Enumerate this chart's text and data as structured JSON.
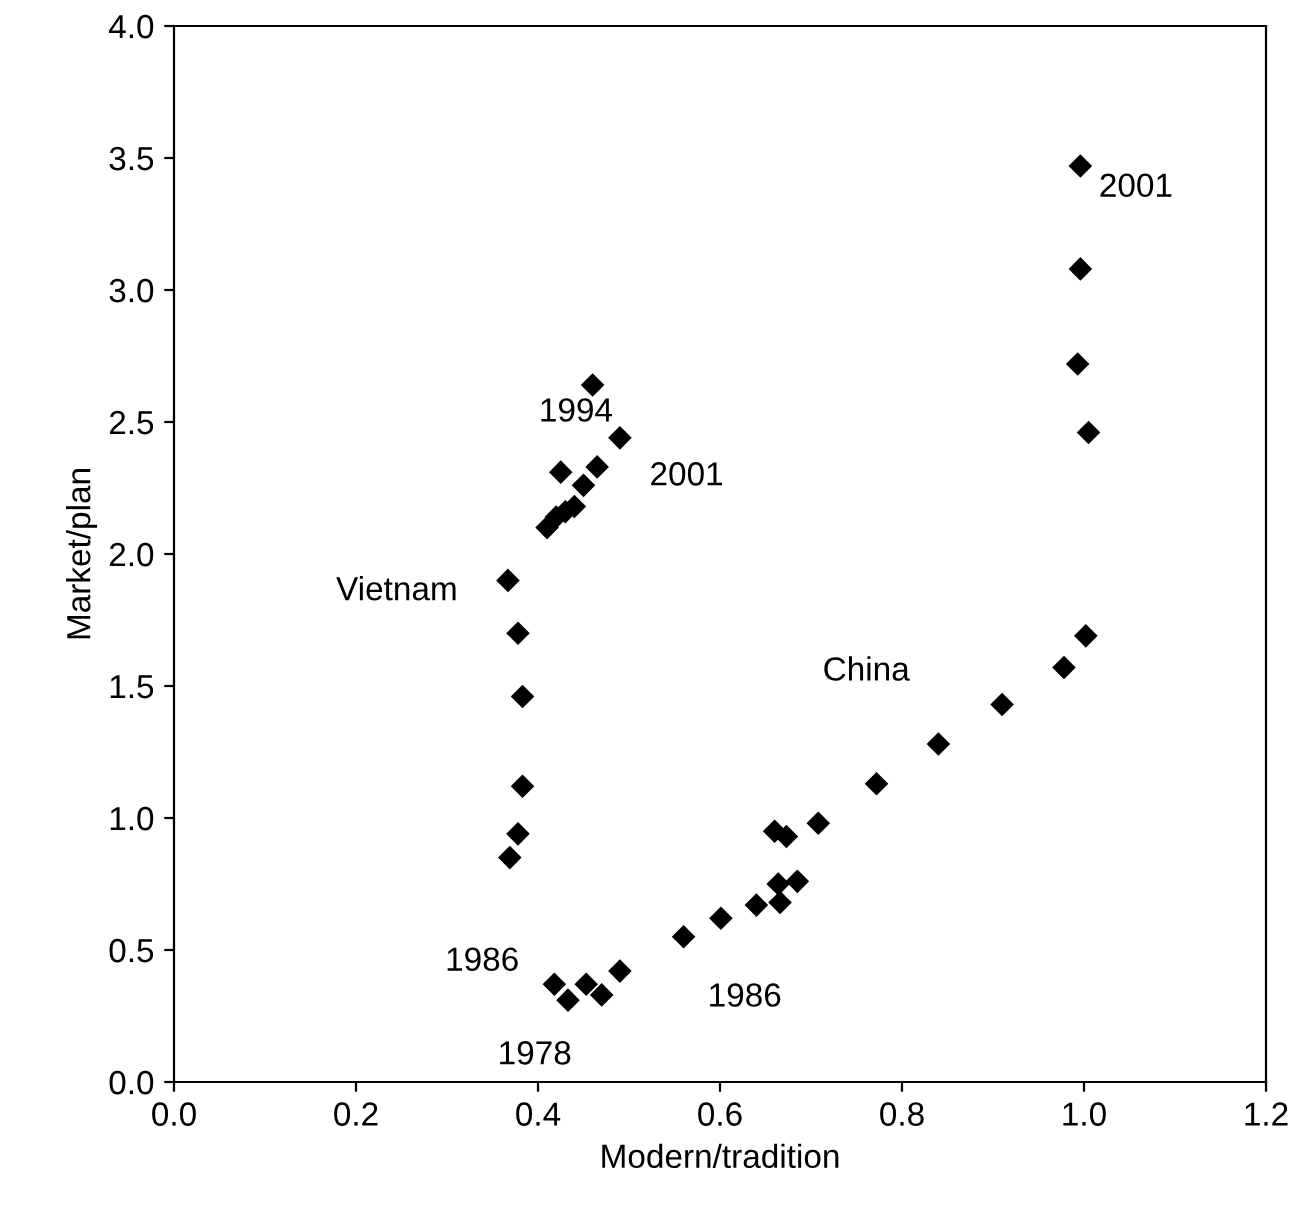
{
  "chart_data": {
    "type": "scatter",
    "xlabel": "Modern/tradition",
    "ylabel": "Market/plan",
    "xlim": [
      0,
      1.2
    ],
    "ylim": [
      0,
      4
    ],
    "xticks": [
      {
        "value": 0,
        "label": "0.0"
      },
      0.2,
      0.4,
      0.6,
      0.8,
      {
        "value": 1,
        "label": "1.0"
      },
      1.2
    ],
    "yticks": [
      {
        "value": 0,
        "label": "0.0"
      },
      0.5,
      {
        "value": 1,
        "label": "1.0"
      },
      1.5,
      {
        "value": 2,
        "label": "2.0"
      },
      2.5,
      {
        "value": 3,
        "label": "3.0"
      },
      3.5,
      {
        "value": 4,
        "label": "4.0"
      }
    ],
    "marker": "diamond",
    "grid": false,
    "series": [
      {
        "name": "Vietnam",
        "color": "#000000",
        "x": [
          0.369,
          0.378,
          0.367,
          0.378,
          0.383,
          0.383,
          0.41,
          0.42,
          0.43,
          0.44,
          0.425,
          0.45,
          0.465,
          0.46,
          0.49
        ],
        "values": [
          0.85,
          0.94,
          1.9,
          1.7,
          1.46,
          1.12,
          2.1,
          2.14,
          2.16,
          2.18,
          2.31,
          2.26,
          2.33,
          2.64,
          2.44
        ]
      },
      {
        "name": "China",
        "color": "#000000",
        "x": [
          0.418,
          0.433,
          0.453,
          0.47,
          0.49,
          0.56,
          0.601,
          0.64,
          0.666,
          0.664,
          0.685,
          0.66,
          0.673,
          0.708,
          0.772,
          0.84,
          0.91,
          0.978,
          1.002,
          1.005,
          0.993,
          0.996,
          0.996
        ],
        "values": [
          0.37,
          0.31,
          0.37,
          0.33,
          0.42,
          0.55,
          0.62,
          0.67,
          0.68,
          0.75,
          0.76,
          0.95,
          0.93,
          0.98,
          1.13,
          1.28,
          1.43,
          1.57,
          1.69,
          2.46,
          2.72,
          3.08,
          3.47
        ]
      }
    ],
    "annotations": [
      {
        "text": "1994",
        "x": 0.46,
        "y": 2.64
      },
      {
        "text": "2001",
        "x": 0.49,
        "y": 2.44
      },
      {
        "text": "2001",
        "x": 0.996,
        "y": 3.47
      },
      {
        "text": "1986",
        "x": 0.418,
        "y": 0.37
      },
      {
        "text": "1978",
        "x": 0.433,
        "y": 0.31
      },
      {
        "text": "1986",
        "x": 0.56,
        "y": 0.55
      }
    ]
  }
}
